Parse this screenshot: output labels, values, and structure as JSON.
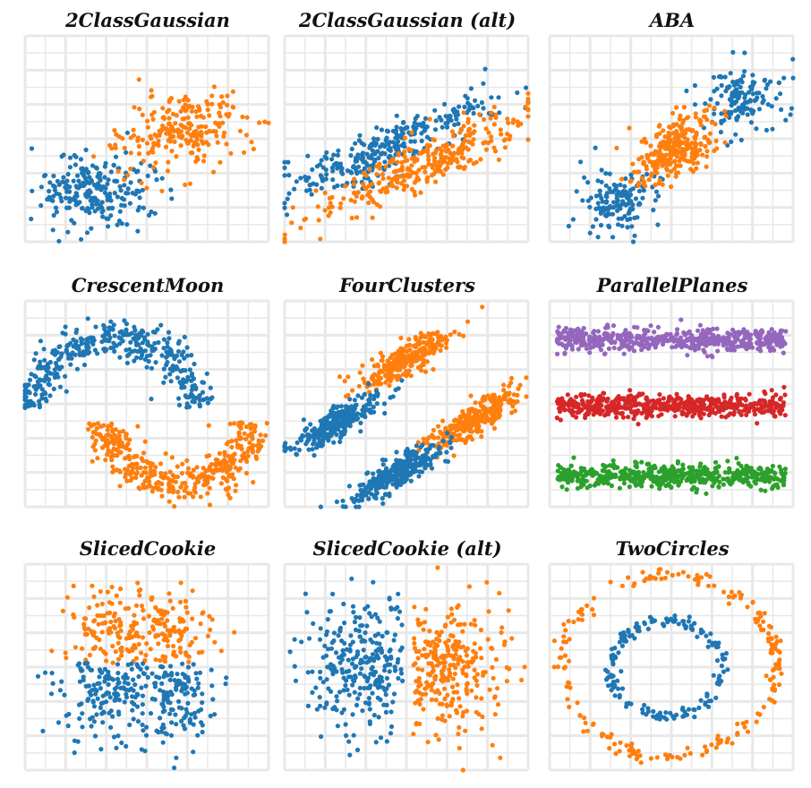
{
  "colors": {
    "blue": "#1f77b4",
    "orange": "#ff7f0e",
    "purple": "#9467bd",
    "red": "#d62728",
    "green": "#2ca02c",
    "grid": "#e8e8e8"
  },
  "chart_data": [
    {
      "title": "2ClassGaussian",
      "type": "scatter",
      "grid": true,
      "xlim": [
        0,
        10
      ],
      "ylim": [
        0,
        10
      ],
      "series": [
        {
          "color": "blue",
          "kind": "gaussian",
          "cx": 2.8,
          "cy": 2.5,
          "sx": 1.2,
          "sy": 0.9,
          "rho": 0.2,
          "n": 230
        },
        {
          "color": "orange",
          "kind": "gaussian",
          "cx": 6.4,
          "cy": 5.3,
          "sx": 1.3,
          "sy": 0.95,
          "rho": 0.2,
          "n": 230
        }
      ]
    },
    {
      "title": "2ClassGaussian (alt)",
      "type": "scatter",
      "grid": true,
      "xlim": [
        0,
        10
      ],
      "ylim": [
        0,
        10
      ],
      "series": [
        {
          "color": "blue",
          "kind": "gaussian",
          "cx": 4.4,
          "cy": 4.6,
          "sx": 2.2,
          "sy": 1.3,
          "rho": 0.88,
          "n": 300
        },
        {
          "color": "orange",
          "kind": "gaussian",
          "cx": 5.6,
          "cy": 3.7,
          "sx": 2.2,
          "sy": 1.3,
          "rho": 0.88,
          "n": 300
        }
      ]
    },
    {
      "title": "ABA",
      "type": "scatter",
      "grid": true,
      "xlim": [
        0,
        10
      ],
      "ylim": [
        0,
        10
      ],
      "series": [
        {
          "color": "blue",
          "kind": "gaussian",
          "cx": 2.9,
          "cy": 2.0,
          "sx": 0.85,
          "sy": 0.8,
          "rho": 0.2,
          "n": 140
        },
        {
          "color": "blue",
          "kind": "gaussian",
          "cx": 7.9,
          "cy": 6.9,
          "sx": 0.85,
          "sy": 0.8,
          "rho": 0.2,
          "n": 140
        },
        {
          "color": "orange",
          "kind": "gaussian",
          "cx": 5.2,
          "cy": 4.5,
          "sx": 0.8,
          "sy": 0.85,
          "rho": 0.4,
          "n": 280
        }
      ]
    },
    {
      "title": "CrescentMoon",
      "type": "scatter",
      "grid": true,
      "xlim": [
        0,
        10
      ],
      "ylim": [
        0,
        10
      ],
      "series": [
        {
          "color": "blue",
          "kind": "arc",
          "cx": 3.6,
          "cy": 4.8,
          "r": 3.4,
          "a0": 0,
          "a1": 180,
          "noise": 0.45,
          "n": 380
        },
        {
          "color": "orange",
          "kind": "arc",
          "cx": 6.3,
          "cy": 4.1,
          "r": 3.0,
          "a0": 180,
          "a1": 360,
          "noise": 0.45,
          "n": 380
        }
      ]
    },
    {
      "title": "FourClusters",
      "type": "scatter",
      "grid": true,
      "xlim": [
        0,
        10
      ],
      "ylim": [
        0,
        10
      ],
      "series": [
        {
          "color": "orange",
          "kind": "gaussian",
          "cx": 4.9,
          "cy": 7.1,
          "sx": 0.9,
          "sy": 0.7,
          "rho": 0.85,
          "n": 300
        },
        {
          "color": "orange",
          "kind": "gaussian",
          "cx": 7.7,
          "cy": 4.2,
          "sx": 0.9,
          "sy": 0.7,
          "rho": 0.85,
          "n": 300
        },
        {
          "color": "blue",
          "kind": "gaussian",
          "cx": 2.2,
          "cy": 4.1,
          "sx": 0.9,
          "sy": 0.7,
          "rho": 0.85,
          "n": 300
        },
        {
          "color": "blue",
          "kind": "gaussian",
          "cx": 4.6,
          "cy": 1.6,
          "sx": 0.9,
          "sy": 0.7,
          "rho": 0.85,
          "n": 300
        }
      ]
    },
    {
      "title": "ParallelPlanes",
      "type": "scatter",
      "grid": true,
      "xlim": [
        0,
        10
      ],
      "ylim": [
        0,
        10
      ],
      "series": [
        {
          "color": "purple",
          "kind": "band",
          "x0": 0.3,
          "x1": 9.7,
          "cy": 8.1,
          "sy": 0.35,
          "n": 520
        },
        {
          "color": "red",
          "kind": "band",
          "x0": 0.3,
          "x1": 9.7,
          "cy": 4.9,
          "sy": 0.35,
          "n": 520
        },
        {
          "color": "green",
          "kind": "band",
          "x0": 0.3,
          "x1": 9.7,
          "cy": 1.5,
          "sy": 0.35,
          "n": 520
        }
      ]
    },
    {
      "title": "SlicedCookie",
      "type": "scatter",
      "grid": true,
      "xlim": [
        0,
        10
      ],
      "ylim": [
        0,
        10
      ],
      "series": [
        {
          "color": "orange",
          "kind": "clusterbox",
          "cx": 3.3,
          "cy": 6.6,
          "sx": 0.9,
          "sy": 1.2,
          "ymin": 5.2,
          "ymax": 10,
          "n": 110
        },
        {
          "color": "orange",
          "kind": "clusterbox",
          "cx": 6.0,
          "cy": 6.6,
          "sx": 0.9,
          "sy": 1.2,
          "ymin": 5.2,
          "ymax": 10,
          "n": 120
        },
        {
          "color": "blue",
          "kind": "clusterbox",
          "cx": 3.3,
          "cy": 4.0,
          "sx": 0.9,
          "sy": 1.3,
          "ymin": 0,
          "ymax": 5.2,
          "n": 150
        },
        {
          "color": "blue",
          "kind": "clusterbox",
          "cx": 6.0,
          "cy": 4.0,
          "sx": 0.9,
          "sy": 1.3,
          "ymin": 0,
          "ymax": 5.2,
          "n": 150
        }
      ]
    },
    {
      "title": "SlicedCookie (alt)",
      "type": "scatter",
      "grid": true,
      "xlim": [
        0,
        10
      ],
      "ylim": [
        0,
        10
      ],
      "series": [
        {
          "color": "blue",
          "kind": "clusterbox",
          "cx": 3.4,
          "cy": 5.0,
          "sx": 1.3,
          "sy": 1.6,
          "xmin": 0,
          "xmax": 4.85,
          "n": 270
        },
        {
          "color": "orange",
          "kind": "clusterbox",
          "cx": 6.4,
          "cy": 5.0,
          "sx": 1.3,
          "sy": 1.6,
          "xmin": 5.25,
          "xmax": 10,
          "n": 270
        }
      ]
    },
    {
      "title": "TwoCircles",
      "type": "scatter",
      "grid": true,
      "xlim": [
        0,
        10
      ],
      "ylim": [
        0,
        10
      ],
      "series": [
        {
          "color": "orange",
          "kind": "ring",
          "cx": 4.9,
          "cy": 5.1,
          "r": 4.4,
          "noise": 0.18,
          "n": 210
        },
        {
          "color": "blue",
          "kind": "ring",
          "cx": 4.8,
          "cy": 4.9,
          "r": 2.3,
          "noise": 0.15,
          "n": 170
        }
      ]
    }
  ]
}
